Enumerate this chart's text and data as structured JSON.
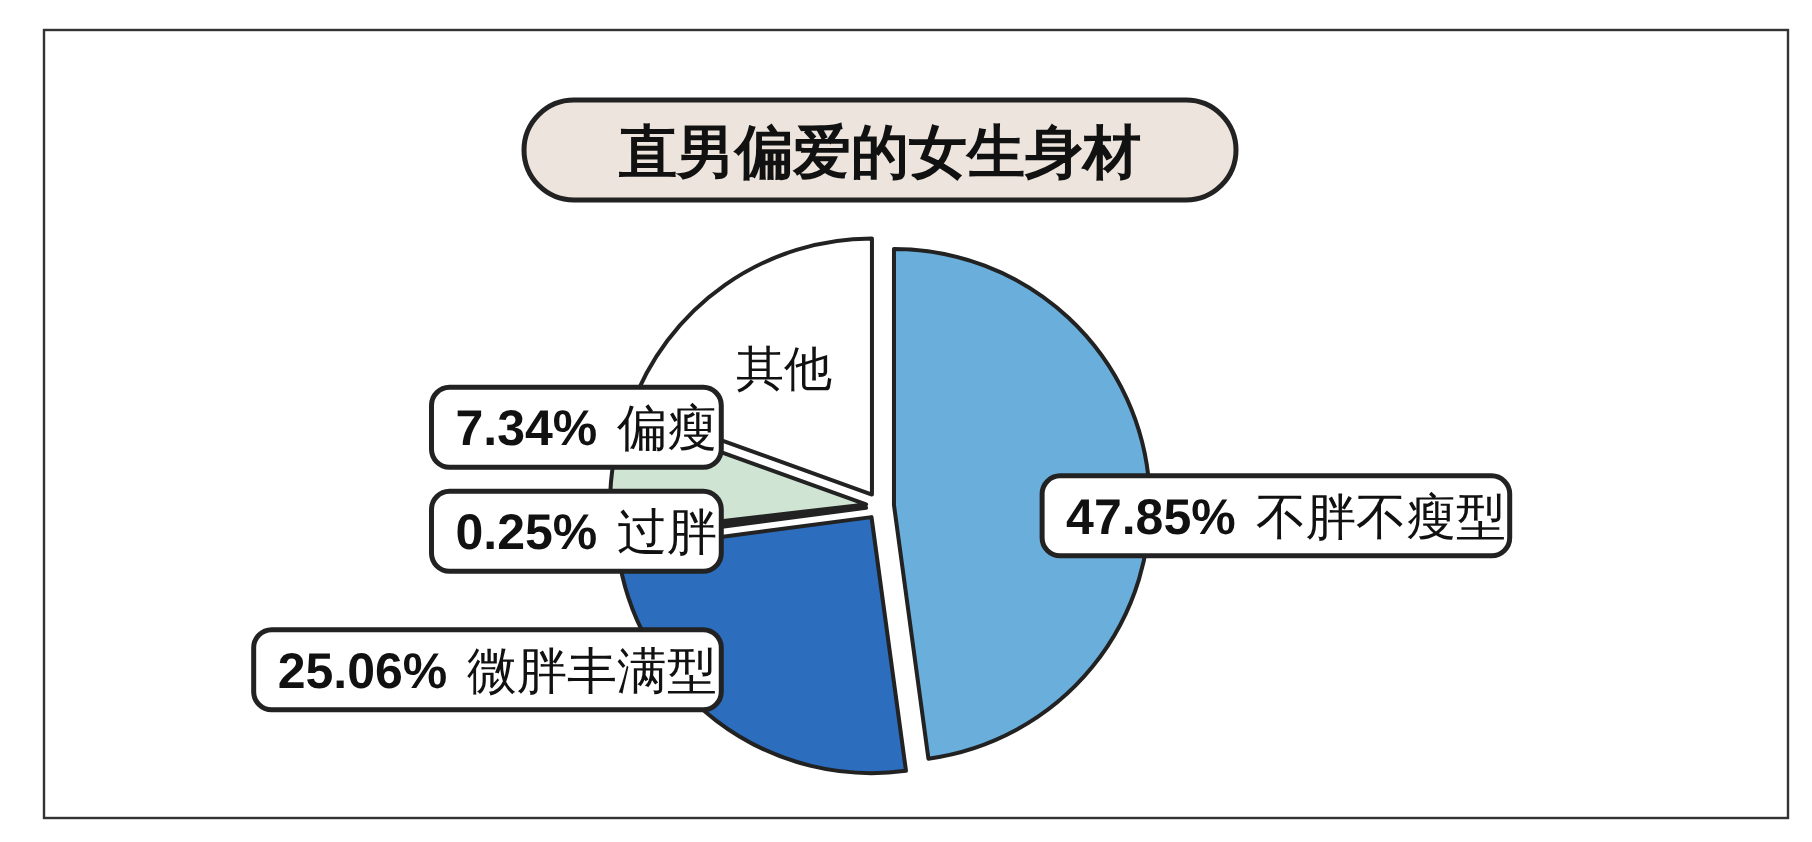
{
  "chart_data": {
    "type": "pie",
    "title": "直男偏爱的女生身材",
    "categories": [
      "不胖不瘦型",
      "微胖丰满型",
      "过胖",
      "偏瘦",
      "其他"
    ],
    "values": [
      47.85,
      25.06,
      0.25,
      7.34,
      19.5
    ],
    "value_labels": [
      "47.85%",
      "25.06%",
      "0.25%",
      "7.34%",
      null
    ],
    "colors": [
      "#6aaedb",
      "#2c6dbd",
      "#ffffff",
      "#cfe4d2",
      "#ffffff"
    ]
  }
}
